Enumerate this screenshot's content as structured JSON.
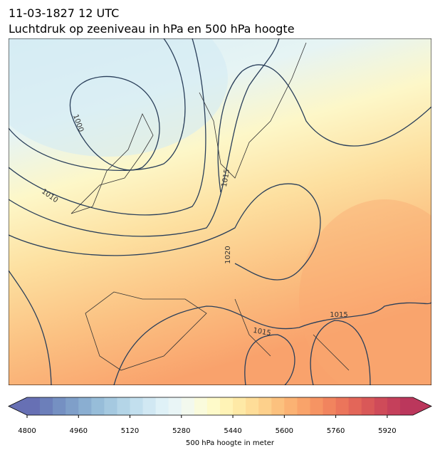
{
  "header": {
    "title": "11-03-1827 12 UTC",
    "subtitle": "Luchtdruk op zeeniveau in hPa en 500 hPa hoogte"
  },
  "map": {
    "contour_labels": [
      1000,
      1010,
      1015,
      1020,
      1015,
      1015
    ]
  },
  "colorbar": {
    "clim": [
      4800,
      6000
    ],
    "ticks": [
      4800,
      4960,
      5120,
      5280,
      5440,
      5600,
      5760,
      5920
    ],
    "label": "500 hPa hoogte in meter",
    "colors": [
      "#6770b4",
      "#6c7fba",
      "#7590c2",
      "#7f9fc9",
      "#8aaed1",
      "#97bdd9",
      "#a5c9e0",
      "#b4d5e7",
      "#c2dfee",
      "#d1e8f3",
      "#dff1f7",
      "#e9f5f6",
      "#f3f9ee",
      "#fafbdc",
      "#fefac9",
      "#fff3b6",
      "#fee9a6",
      "#fedd98",
      "#fdd08b",
      "#fcc17e",
      "#fbb273",
      "#f9a36a",
      "#f69463",
      "#f1845e",
      "#eb755b",
      "#e36659",
      "#d95858",
      "#cf4b59",
      "#c5405b",
      "#bb375c"
    ]
  }
}
